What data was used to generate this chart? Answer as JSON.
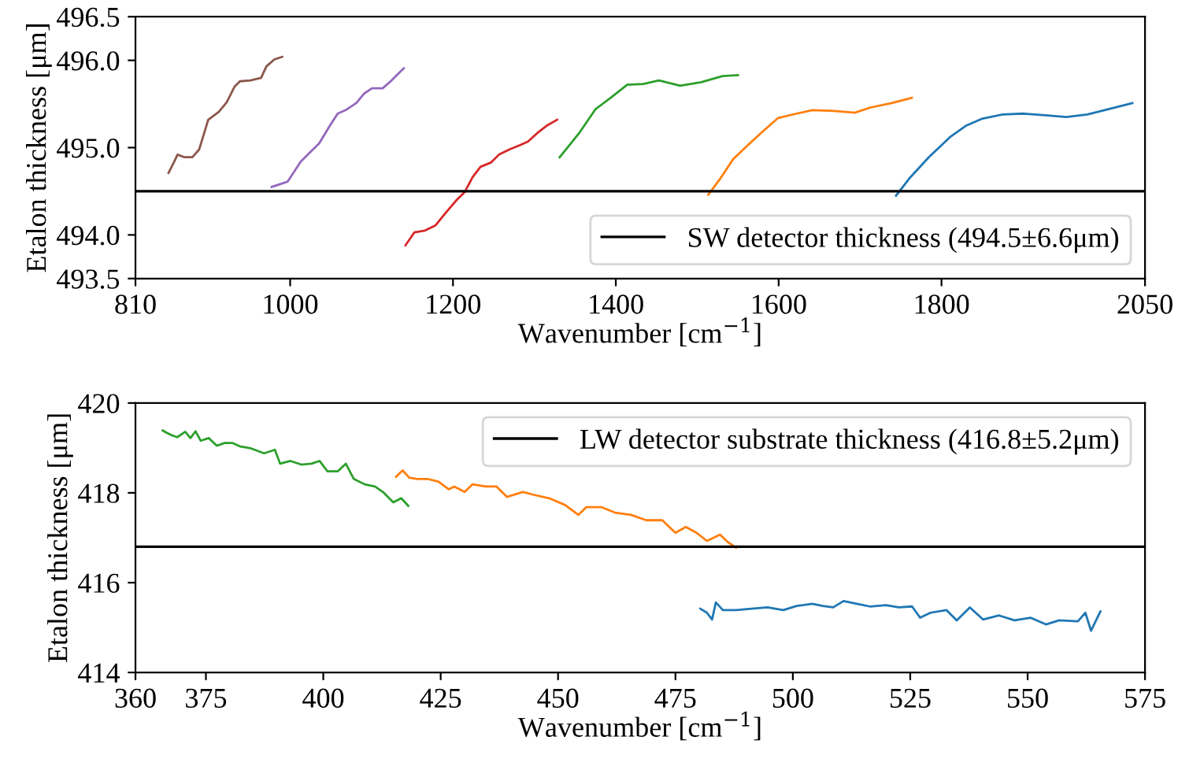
{
  "chart_data": [
    {
      "type": "line",
      "xlabel": "Wavenumber [cm$^{−1}$]",
      "ylabel": "Etalon thickness [μm]",
      "xlim": [
        810,
        2050
      ],
      "xticks": [
        810,
        1000,
        1200,
        1400,
        1600,
        1800,
        2050
      ],
      "ylim": [
        493.5,
        496.5
      ],
      "yticks": [
        493.5,
        {
          "value": 494,
          "label": "494.0"
        },
        {
          "value": 495,
          "label": "495.0"
        },
        {
          "value": 496,
          "label": "496.0"
        },
        496.5
      ],
      "grid": false,
      "legend": "bottom right",
      "ref_lines": [
        {
          "axis": "y",
          "value": 494.5,
          "label": "SW detector thickness (494.5±6.6μm)",
          "color": "#000000"
        }
      ],
      "series": [
        {
          "color": "#8c564b",
          "x": [
            850.6,
            857.1,
            861.7,
            870.1,
            879.9,
            888.3,
            894.8,
            899.4,
            912.3,
            922.1,
            931.8,
            938.3,
            951.3,
            964.3,
            970.8,
            980.5,
            990.3
          ],
          "values": [
            494.71,
            494.83,
            494.92,
            494.89,
            494.89,
            494.98,
            495.18,
            495.32,
            495.41,
            495.52,
            495.7,
            495.76,
            495.77,
            495.8,
            495.93,
            496.01,
            496.04
          ]
        },
        {
          "color": "#9467bd",
          "x": [
            977.3,
            987.0,
            996.8,
            1003.2,
            1013.0,
            1022.7,
            1035.7,
            1048.7,
            1058.4,
            1068.2,
            1081.2,
            1090.9,
            1100.6,
            1113.6,
            1123.4,
            1133.1,
            1139.6
          ],
          "values": [
            494.55,
            494.58,
            494.61,
            494.7,
            494.84,
            494.93,
            495.05,
            495.25,
            495.39,
            495.43,
            495.51,
            495.62,
            495.68,
            495.68,
            495.76,
            495.85,
            495.91
          ]
        },
        {
          "color": "#d62728",
          "x": [
            1141.6,
            1152.6,
            1165.6,
            1178.6,
            1191.6,
            1204.5,
            1214.3,
            1224.0,
            1233.8,
            1246.8,
            1256.5,
            1269.5,
            1282.5,
            1292.2,
            1305.2,
            1314.9,
            1327.9
          ],
          "values": [
            493.88,
            494.03,
            494.05,
            494.11,
            494.26,
            494.4,
            494.49,
            494.66,
            494.78,
            494.83,
            494.92,
            494.98,
            495.03,
            495.07,
            495.18,
            495.25,
            495.32
          ]
        },
        {
          "color": "#2ca02c",
          "x": [
            1331,
            1345,
            1356,
            1375,
            1395,
            1414,
            1434,
            1453,
            1479,
            1505,
            1531,
            1550
          ],
          "values": [
            494.89,
            495.05,
            495.18,
            495.44,
            495.58,
            495.72,
            495.73,
            495.77,
            495.71,
            495.75,
            495.82,
            495.83
          ]
        },
        {
          "color": "#ff7f0e",
          "x": [
            1513.6,
            1527.9,
            1544.2,
            1563.6,
            1579.9,
            1599.4,
            1622.1,
            1641.6,
            1667.5,
            1693.5,
            1713.0,
            1739.0,
            1763.6
          ],
          "values": [
            494.46,
            494.64,
            494.87,
            495.04,
            495.18,
            495.34,
            495.39,
            495.43,
            495.42,
            495.4,
            495.46,
            495.51,
            495.57
          ]
        },
        {
          "color": "#1f77b4",
          "x": [
            1744.2,
            1761.7,
            1784.4,
            1810.4,
            1829.9,
            1849.4,
            1875.3,
            1901.3,
            1927.3,
            1953.2,
            1979.2,
            2005.2,
            2034.4
          ],
          "values": [
            494.45,
            494.66,
            494.89,
            495.12,
            495.25,
            495.33,
            495.38,
            495.39,
            495.37,
            495.35,
            495.38,
            495.44,
            495.51
          ]
        }
      ]
    },
    {
      "type": "line",
      "xlabel": "Wavenumber [cm$^{−1}$]",
      "ylabel": "Etalon thickness [μm]",
      "xlim": [
        360,
        575
      ],
      "xticks": [
        360,
        375,
        400,
        425,
        450,
        475,
        500,
        525,
        550,
        575
      ],
      "ylim": [
        414,
        420
      ],
      "yticks": [
        414,
        416,
        418,
        420
      ],
      "grid": false,
      "legend": "top right",
      "ref_lines": [
        {
          "axis": "y",
          "value": 416.8,
          "label": "LW detector substrate thickness (416.8±5.2μm)",
          "color": "#000000"
        }
      ],
      "series": [
        {
          "color": "#2ca02c",
          "x": [
            365.8,
            366.6,
            367.8,
            368.9,
            370.6,
            371.7,
            372.8,
            373.9,
            375.6,
            377.3,
            379.0,
            380.7,
            382.4,
            384.6,
            387.4,
            389.7,
            390.8,
            393.0,
            395.3,
            397.5,
            399.2,
            400.9,
            403.1,
            404.8,
            406.5,
            408.8,
            411.0,
            412.7,
            414.9,
            416.6,
            418.1
          ],
          "values": [
            419.39,
            419.34,
            419.28,
            419.24,
            419.36,
            419.22,
            419.37,
            419.16,
            419.22,
            419.05,
            419.11,
            419.11,
            419.03,
            418.99,
            418.88,
            418.96,
            418.65,
            418.71,
            418.63,
            418.65,
            418.71,
            418.48,
            418.48,
            418.65,
            418.31,
            418.19,
            418.14,
            418.02,
            417.79,
            417.88,
            417.71
          ]
        },
        {
          "color": "#ff7f0e",
          "x": [
            415.5,
            416.9,
            418.3,
            420.0,
            422.2,
            424.5,
            426.7,
            427.9,
            430.1,
            431.8,
            434.6,
            436.9,
            439.1,
            442.5,
            444.7,
            448.1,
            451.5,
            454.3,
            456.0,
            459.3,
            462.1,
            465.5,
            468.8,
            472.2,
            475.0,
            477.2,
            479.5,
            481.7,
            484.5,
            486.2,
            487.9
          ],
          "values": [
            418.36,
            418.5,
            418.34,
            418.31,
            418.31,
            418.25,
            418.08,
            418.14,
            418.02,
            418.19,
            418.14,
            418.14,
            417.91,
            418.02,
            417.96,
            417.88,
            417.73,
            417.51,
            417.68,
            417.68,
            417.56,
            417.51,
            417.39,
            417.39,
            417.11,
            417.24,
            417.11,
            416.93,
            417.07,
            416.9,
            416.78
          ]
        },
        {
          "color": "#1f77b4",
          "x": [
            480.3,
            481.7,
            482.8,
            483.6,
            485.1,
            487.9,
            491.2,
            494.6,
            497.96,
            500.8,
            504.1,
            506.4,
            508.6,
            510.8,
            513.6,
            516.4,
            519.8,
            522.6,
            525.4,
            527.1,
            529.3,
            532.7,
            534.9,
            537.7,
            540.5,
            543.9,
            547.2,
            550.6,
            553.9,
            556.7,
            560.7,
            562.3,
            563.5,
            565.5
          ],
          "values": [
            415.42,
            415.33,
            415.18,
            415.56,
            415.39,
            415.39,
            415.42,
            415.45,
            415.39,
            415.48,
            415.53,
            415.48,
            415.45,
            415.59,
            415.53,
            415.47,
            415.5,
            415.45,
            415.47,
            415.22,
            415.33,
            415.39,
            415.16,
            415.45,
            415.18,
            415.27,
            415.16,
            415.22,
            415.07,
            415.16,
            415.14,
            415.33,
            414.93,
            415.36
          ]
        }
      ]
    }
  ]
}
